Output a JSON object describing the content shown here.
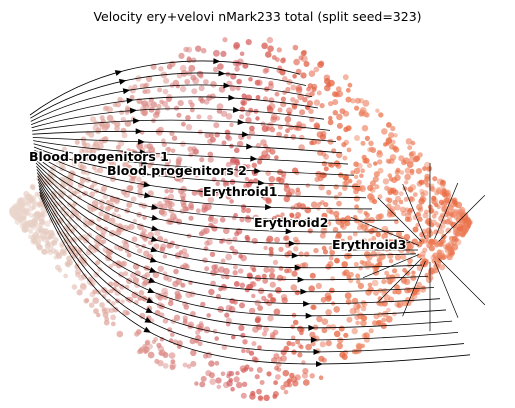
{
  "title": "Velocity ery+velovi nMark233 total (split seed=323)",
  "colors": {
    "progenitor": "#ead7cd",
    "early": "#d48f8c",
    "mid": "#d25a5f",
    "late": "#e9683f",
    "late_light": "#f4a88e",
    "stream": "#000000",
    "background": "#ffffff"
  },
  "chart_data": {
    "type": "scatter",
    "subtype": "rna-velocity-embedding-stream",
    "title": "Velocity ery+velovi nMark233 total (split seed=323)",
    "axes_visible": false,
    "grid": false,
    "legend": "on data",
    "clusters": [
      {
        "name": "Blood progenitors 1",
        "color": "#ead7cd"
      },
      {
        "name": "Blood progenitors 2",
        "color": "#e4c2b6"
      },
      {
        "name": "Erythroid1",
        "color": "#d48f8c"
      },
      {
        "name": "Erythroid2",
        "color": "#d25a5f"
      },
      {
        "name": "Erythroid3",
        "color": "#e9683f"
      }
    ],
    "stream_direction": "from Blood progenitors 1 toward Erythroid3"
  }
}
